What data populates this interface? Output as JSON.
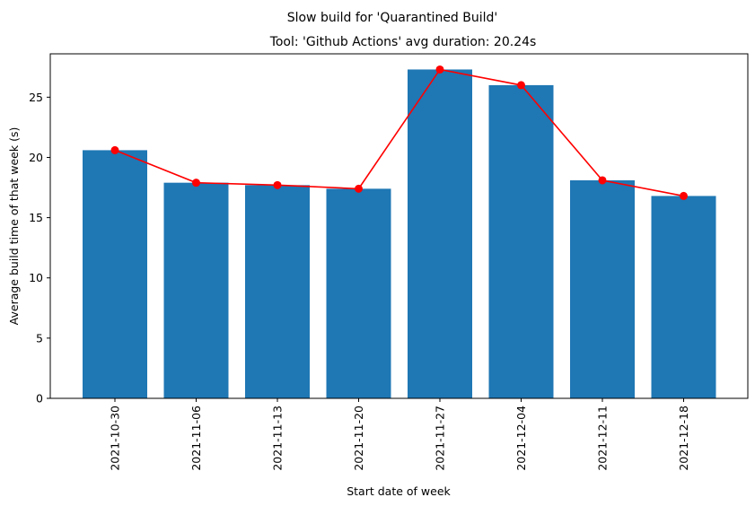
{
  "chart_data": {
    "type": "bar",
    "suptitle": "Slow build for 'Quarantined Build'",
    "title": "Tool: 'Github Actions' avg duration: 20.24s",
    "xlabel": "Start date of week",
    "ylabel": "Average build time of that week (s)",
    "categories": [
      "2021-10-30",
      "2021-11-06",
      "2021-11-13",
      "2021-11-20",
      "2021-11-27",
      "2021-12-04",
      "2021-12-11",
      "2021-12-18"
    ],
    "values": [
      20.6,
      17.9,
      17.7,
      17.4,
      27.3,
      26.0,
      18.1,
      16.8
    ],
    "line_values": [
      20.6,
      17.9,
      17.7,
      17.4,
      27.3,
      26.0,
      18.1,
      16.8
    ],
    "ylim": [
      0,
      28.6
    ],
    "yticks": [
      0,
      5,
      10,
      15,
      20,
      25
    ],
    "bar_color": "#1f77b4",
    "line_color": "#ff0000",
    "grid": false
  }
}
